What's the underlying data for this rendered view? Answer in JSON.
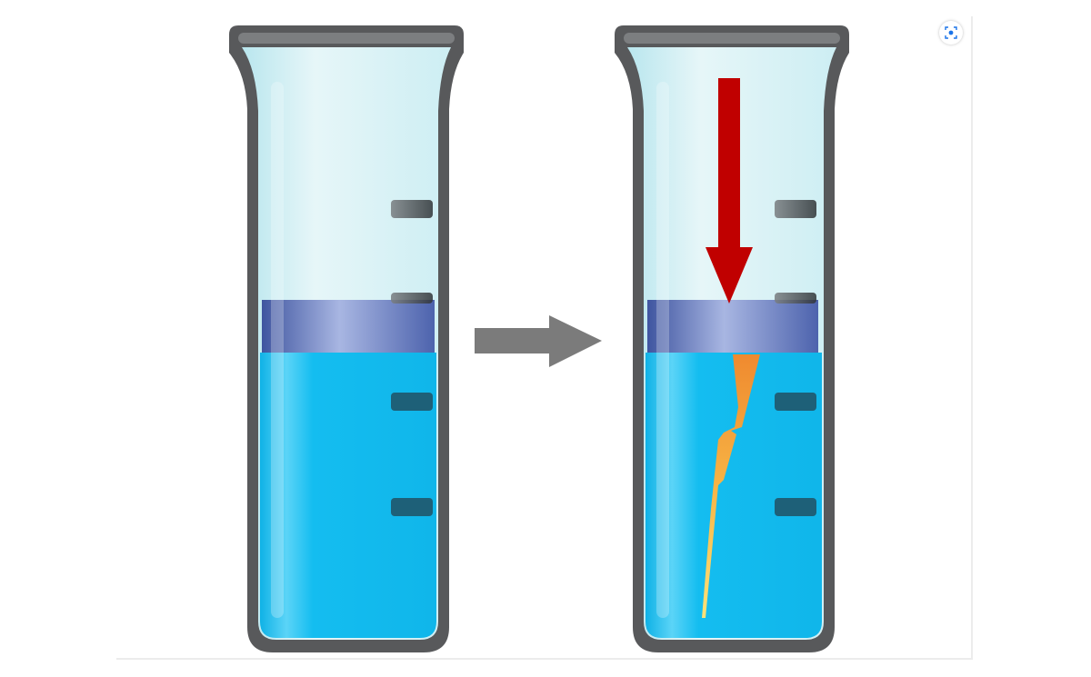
{
  "figure": {
    "description_free": true,
    "left_tube": {
      "liquid_color": "#14bdf0",
      "layer_color": "#5e74b8"
    },
    "right_tube": {
      "liquid_color": "#14bdf0",
      "layer_color": "#5e74b8"
    },
    "transition_arrow": {
      "color": "#7b7b7b"
    },
    "force_arrow": {
      "color": "#c00000"
    },
    "crack": {
      "colors": [
        "#f4a83a",
        "#fbd24d"
      ]
    }
  },
  "toolbar": {
    "lens_icon": "visual-search-icon"
  }
}
